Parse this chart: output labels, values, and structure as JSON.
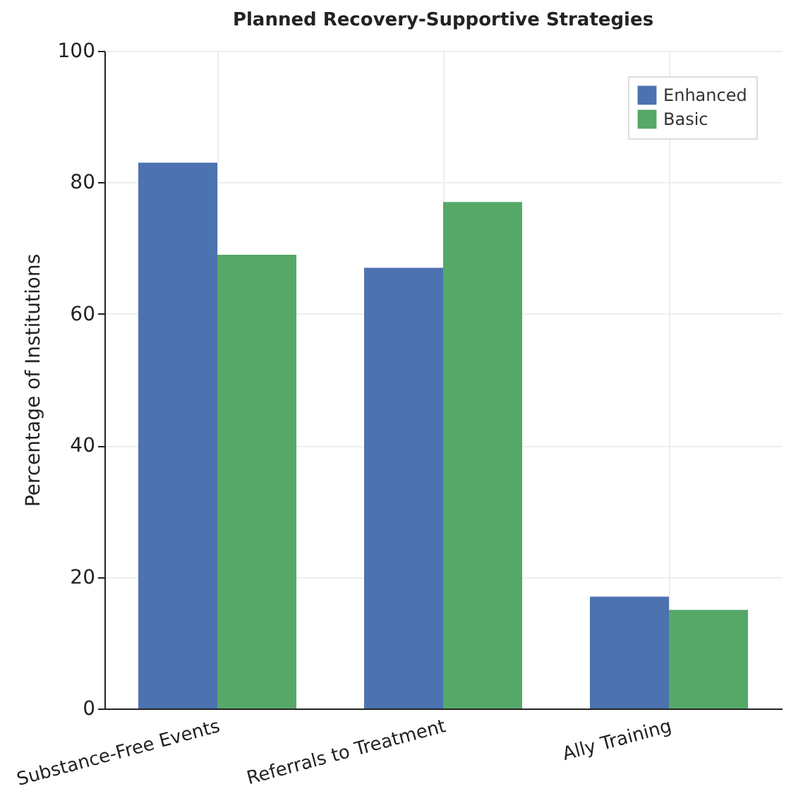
{
  "chart_data": {
    "type": "bar",
    "title": "Planned Recovery-Supportive Strategies",
    "ylabel": "Percentage of Institutions",
    "categories": [
      "Substance-Free Events",
      "Referrals to Treatment",
      "Ally Training"
    ],
    "series": [
      {
        "name": "Enhanced",
        "color": "#4c72b0",
        "values": [
          83,
          67,
          17
        ]
      },
      {
        "name": "Basic",
        "color": "#55a868",
        "values": [
          69,
          77,
          15
        ]
      }
    ],
    "ylim": [
      0,
      100
    ],
    "yticks": [
      0,
      20,
      40,
      60,
      80,
      100
    ],
    "grid": true,
    "legend": "top right"
  }
}
